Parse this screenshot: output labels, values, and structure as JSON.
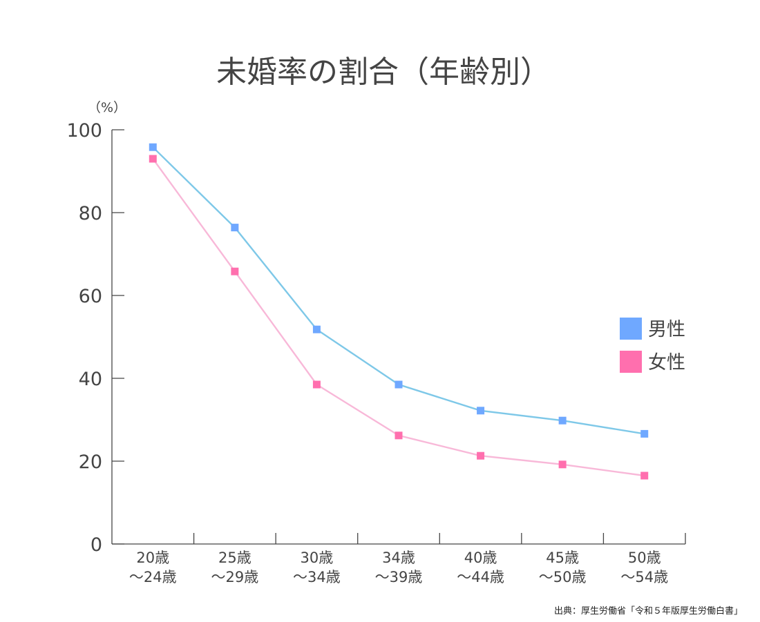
{
  "chart_data": {
    "type": "line",
    "title": "未婚率の割合（年齢別）",
    "ylabel": "（%）",
    "xlabel": "",
    "ylim": [
      0,
      100
    ],
    "yticks": [
      0,
      20,
      40,
      60,
      80,
      100
    ],
    "categories": [
      [
        "20歳",
        "～24歳"
      ],
      [
        "25歳",
        "～29歳"
      ],
      [
        "30歳",
        "～34歳"
      ],
      [
        "34歳",
        "～39歳"
      ],
      [
        "40歳",
        "～44歳"
      ],
      [
        "45歳",
        "～50歳"
      ],
      [
        "50歳",
        "～54歳"
      ]
    ],
    "series": [
      {
        "name": "男性",
        "values": [
          95.8,
          76.4,
          51.8,
          38.5,
          32.2,
          29.8,
          26.6
        ],
        "line_color": "#7ec8e8",
        "marker_color": "#6fa8ff"
      },
      {
        "name": "女性",
        "values": [
          93.0,
          65.8,
          38.5,
          26.2,
          21.3,
          19.2,
          16.5
        ],
        "line_color": "#f8b8d8",
        "marker_color": "#ff6fae"
      }
    ],
    "legend_position": "right",
    "grid": false,
    "source": "出典：厚生労働省「令和５年版厚生労働白書」"
  }
}
